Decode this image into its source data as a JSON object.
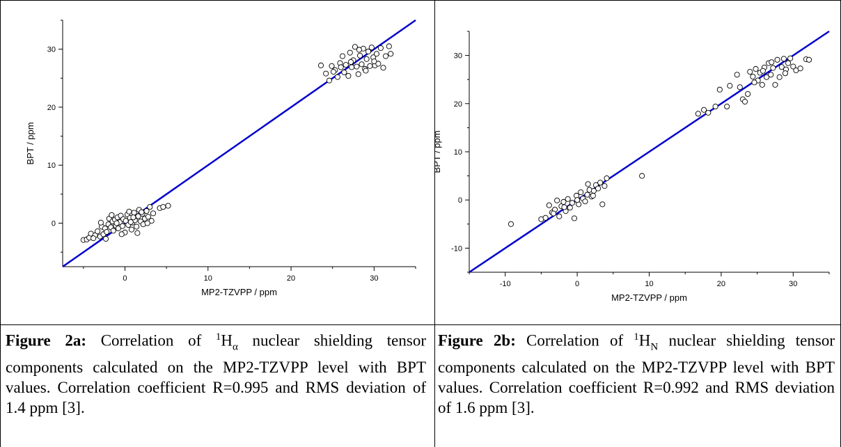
{
  "chart_data": [
    {
      "type": "scatter",
      "xlabel": "MP2-TZVPP / ppm",
      "ylabel": "BPT / ppm",
      "xlim": [
        -7.5,
        35
      ],
      "ylim": [
        -7.5,
        35
      ],
      "xticks": [
        0,
        10,
        20,
        30
      ],
      "yticks": [
        0,
        10,
        20,
        30
      ],
      "fit_line": {
        "x": [
          -7.5,
          35
        ],
        "y": [
          -7.5,
          35
        ],
        "color": "#0000cc"
      },
      "points": [
        [
          -5.0,
          -2.9
        ],
        [
          -4.6,
          -2.8
        ],
        [
          -4.3,
          -2.5
        ],
        [
          -4.1,
          -1.8
        ],
        [
          -3.6,
          -2.1
        ],
        [
          -3.3,
          -1.4
        ],
        [
          -3.0,
          -2.3
        ],
        [
          -2.8,
          -0.6
        ],
        [
          -2.6,
          -1.9
        ],
        [
          -2.4,
          -0.9
        ],
        [
          -2.2,
          -1.5
        ],
        [
          -2.0,
          -0.2
        ],
        [
          -1.9,
          0.8
        ],
        [
          -1.7,
          -0.7
        ],
        [
          -1.5,
          0.3
        ],
        [
          -1.4,
          -1.3
        ],
        [
          -1.2,
          0.6
        ],
        [
          -1.1,
          -0.4
        ],
        [
          -0.9,
          1.0
        ],
        [
          -0.8,
          -0.9
        ],
        [
          -0.6,
          0.2
        ],
        [
          -0.5,
          1.3
        ],
        [
          -0.3,
          -0.5
        ],
        [
          -0.2,
          0.7
        ],
        [
          0.0,
          -1.6
        ],
        [
          0.1,
          0.4
        ],
        [
          0.3,
          1.5
        ],
        [
          0.4,
          -0.3
        ],
        [
          0.6,
          0.9
        ],
        [
          0.8,
          -1.1
        ],
        [
          0.9,
          0.1
        ],
        [
          1.1,
          1.8
        ],
        [
          1.2,
          0.5
        ],
        [
          1.4,
          -0.6
        ],
        [
          1.6,
          1.2
        ],
        [
          1.7,
          2.3
        ],
        [
          1.9,
          0.3
        ],
        [
          2.1,
          1.6
        ],
        [
          2.2,
          -0.2
        ],
        [
          2.4,
          0.8
        ],
        [
          2.6,
          2.1
        ],
        [
          2.8,
          1.1
        ],
        [
          3.0,
          2.8
        ],
        [
          3.2,
          0.4
        ],
        [
          3.4,
          1.7
        ],
        [
          -3.8,
          -2.6
        ],
        [
          -2.9,
          0.1
        ],
        [
          -1.6,
          1.4
        ],
        [
          0.5,
          2.0
        ],
        [
          1.5,
          -1.7
        ],
        [
          2.7,
          0.0
        ],
        [
          4.2,
          2.6
        ],
        [
          4.6,
          2.8
        ],
        [
          5.2,
          3.0
        ],
        [
          -0.4,
          -1.9
        ],
        [
          0.7,
          0.2
        ],
        [
          -2.3,
          -2.7
        ],
        [
          1.0,
          1.0
        ],
        [
          2.0,
          1.9
        ],
        [
          -1.0,
          0.0
        ],
        [
          23.6,
          27.2
        ],
        [
          24.2,
          25.8
        ],
        [
          24.6,
          24.6
        ],
        [
          24.9,
          27.1
        ],
        [
          25.3,
          26.4
        ],
        [
          25.6,
          25.2
        ],
        [
          25.9,
          27.6
        ],
        [
          26.2,
          28.8
        ],
        [
          26.4,
          26.0
        ],
        [
          26.6,
          27.3
        ],
        [
          26.9,
          25.4
        ],
        [
          27.1,
          29.4
        ],
        [
          27.3,
          26.9
        ],
        [
          27.5,
          28.1
        ],
        [
          27.7,
          30.4
        ],
        [
          27.9,
          27.0
        ],
        [
          28.1,
          25.7
        ],
        [
          28.3,
          28.9
        ],
        [
          28.5,
          27.4
        ],
        [
          28.7,
          30.1
        ],
        [
          28.9,
          26.6
        ],
        [
          29.1,
          28.3
        ],
        [
          29.3,
          29.6
        ],
        [
          29.5,
          27.1
        ],
        [
          29.7,
          30.3
        ],
        [
          29.9,
          28.6
        ],
        [
          30.1,
          27.2
        ],
        [
          30.3,
          29.2
        ],
        [
          30.5,
          27.5
        ],
        [
          30.8,
          30.2
        ],
        [
          31.1,
          26.8
        ],
        [
          31.4,
          28.8
        ],
        [
          31.8,
          30.5
        ],
        [
          32.0,
          29.2
        ],
        [
          26.0,
          26.9
        ],
        [
          27.2,
          27.8
        ],
        [
          28.2,
          29.9
        ],
        [
          29.0,
          26.3
        ],
        [
          30.0,
          27.9
        ],
        [
          25.1,
          26.1
        ]
      ]
    },
    {
      "type": "scatter",
      "xlabel": "MP2-TZVPP / ppm",
      "ylabel": "BPT / ppm",
      "xlim": [
        -15,
        35
      ],
      "ylim": [
        -15,
        35
      ],
      "xticks": [
        -10,
        0,
        10,
        20,
        30
      ],
      "yticks": [
        -10,
        0,
        10,
        20,
        30
      ],
      "fit_line": {
        "x": [
          -15,
          35
        ],
        "y": [
          -15,
          35
        ],
        "color": "#0000cc"
      },
      "points": [
        [
          -9.2,
          -5.0
        ],
        [
          -5.0,
          -4.0
        ],
        [
          -4.4,
          -3.7
        ],
        [
          -3.9,
          -1.1
        ],
        [
          -3.5,
          -2.6
        ],
        [
          -3.1,
          -2.0
        ],
        [
          -2.8,
          -0.1
        ],
        [
          -2.5,
          -3.4
        ],
        [
          -2.2,
          -1.3
        ],
        [
          -1.9,
          -0.4
        ],
        [
          -1.6,
          -2.3
        ],
        [
          -1.3,
          0.2
        ],
        [
          -1.0,
          -1.6
        ],
        [
          -0.7,
          -0.6
        ],
        [
          -0.4,
          -3.8
        ],
        [
          -0.1,
          0.9
        ],
        [
          0.2,
          -0.9
        ],
        [
          0.5,
          1.6
        ],
        [
          0.8,
          0.3
        ],
        [
          1.1,
          -0.3
        ],
        [
          1.4,
          1.1
        ],
        [
          1.7,
          2.1
        ],
        [
          2.0,
          0.7
        ],
        [
          2.3,
          1.9
        ],
        [
          2.6,
          3.1
        ],
        [
          2.9,
          2.4
        ],
        [
          3.2,
          3.6
        ],
        [
          3.5,
          -0.9
        ],
        [
          3.8,
          2.9
        ],
        [
          4.1,
          4.5
        ],
        [
          1.5,
          3.3
        ],
        [
          0.0,
          0.0
        ],
        [
          -3.3,
          -2.8
        ],
        [
          -1.8,
          -1.5
        ],
        [
          2.2,
          0.9
        ],
        [
          9.0,
          5.0
        ],
        [
          16.8,
          17.9
        ],
        [
          17.6,
          18.7
        ],
        [
          18.2,
          18.1
        ],
        [
          19.2,
          19.4
        ],
        [
          19.8,
          22.9
        ],
        [
          20.8,
          19.4
        ],
        [
          21.2,
          23.7
        ],
        [
          22.2,
          26.0
        ],
        [
          22.6,
          23.4
        ],
        [
          23.0,
          20.9
        ],
        [
          23.3,
          20.4
        ],
        [
          23.7,
          22.0
        ],
        [
          24.0,
          26.6
        ],
        [
          24.4,
          25.6
        ],
        [
          24.8,
          27.2
        ],
        [
          25.1,
          24.8
        ],
        [
          25.4,
          26.4
        ],
        [
          25.7,
          23.9
        ],
        [
          26.0,
          27.5
        ],
        [
          26.3,
          25.5
        ],
        [
          26.6,
          28.4
        ],
        [
          26.9,
          26.0
        ],
        [
          27.2,
          27.4
        ],
        [
          27.5,
          23.9
        ],
        [
          27.8,
          29.1
        ],
        [
          28.1,
          25.5
        ],
        [
          28.4,
          27.6
        ],
        [
          28.7,
          29.3
        ],
        [
          29.0,
          27.1
        ],
        [
          29.3,
          28.4
        ],
        [
          29.6,
          29.4
        ],
        [
          30.0,
          27.7
        ],
        [
          30.4,
          26.9
        ],
        [
          31.0,
          27.3
        ],
        [
          31.8,
          29.2
        ],
        [
          32.2,
          29.1
        ],
        [
          25.8,
          26.8
        ],
        [
          27.0,
          28.6
        ],
        [
          28.9,
          26.3
        ],
        [
          24.6,
          24.4
        ]
      ]
    }
  ],
  "captions": {
    "a": {
      "label": "Figure 2a:",
      "pre": " Correlation of ",
      "iso": "1",
      "nucleus": "H",
      "sub": "α",
      "post": " nuclear shielding tensor components calculated on the MP2-TZVPP level with BPT values. Correlation coefficient R=0.995 and RMS deviation of 1.4 ppm [3]."
    },
    "b": {
      "label": "Figure 2b:",
      "pre": " Correlation of ",
      "iso": "1",
      "nucleus": "H",
      "sub": "N",
      "post": " nuclear shielding tensor components calculated on the MP2-TZVPP level with BPT values. Correlation coefficient R=0.992 and RMS deviation of 1.6 ppm [3]."
    }
  }
}
